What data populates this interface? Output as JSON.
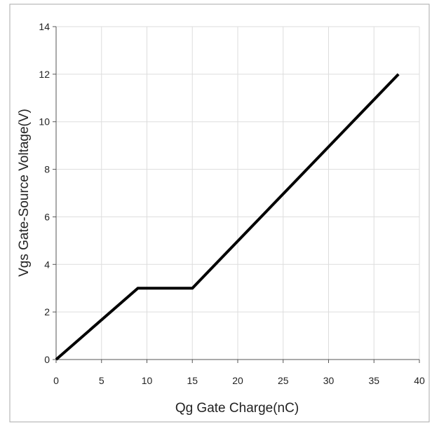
{
  "chart_data": {
    "type": "line",
    "title": "",
    "xlabel": "Qg Gate Charge(nC)",
    "ylabel": "Vgs Gate-Source Voltage(V)",
    "xlim": [
      0,
      40
    ],
    "ylim": [
      0,
      14
    ],
    "xticks": [
      0,
      5,
      10,
      15,
      20,
      25,
      30,
      35,
      40
    ],
    "yticks": [
      0,
      2,
      4,
      6,
      8,
      10,
      12,
      14
    ],
    "grid": true,
    "legend": "none",
    "series": [
      {
        "x": [
          0,
          9,
          15,
          37.7
        ],
        "y": [
          0,
          3,
          3,
          12
        ],
        "color": "#000000"
      }
    ],
    "colors": {
      "grid": "#dddddd",
      "axis": "#555555",
      "border": "#aaaaaa",
      "line": "#000000"
    }
  }
}
